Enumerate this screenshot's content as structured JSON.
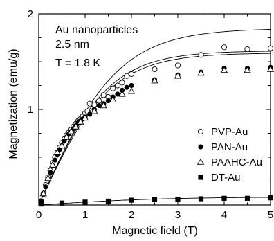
{
  "chart_data": {
    "type": "scatter",
    "xlabel": "Magnetic field (T)",
    "ylabel": "Magnetization (emu/g)",
    "xlim": [
      0,
      5
    ],
    "ylim": [
      0,
      2
    ],
    "xticks": [
      "0",
      "1",
      "2",
      "3",
      "4",
      "5"
    ],
    "yticks": [
      "1",
      "2"
    ],
    "grid": false,
    "legend_position": "center-right",
    "annotations": [
      "Au nanoparticles",
      "2.5 nm",
      "T = 1.8 K"
    ],
    "series": [
      {
        "name": "PVP-Au",
        "marker": "open-circle",
        "x": [
          0.05,
          0.1,
          0.15,
          0.2,
          0.25,
          0.3,
          0.35,
          0.4,
          0.45,
          0.5,
          0.55,
          0.6,
          0.65,
          0.7,
          0.75,
          0.8,
          0.85,
          0.9,
          0.95,
          1.0,
          1.05,
          1.1,
          1.2,
          1.3,
          1.4,
          1.5,
          1.6,
          1.7,
          1.8,
          1.9,
          2.0,
          2.5,
          3.0,
          3.5,
          4.0,
          4.5,
          5.0
        ],
        "y": [
          0.04,
          0.12,
          0.21,
          0.29,
          0.36,
          0.44,
          0.5,
          0.55,
          0.6,
          0.65,
          0.69,
          0.73,
          0.76,
          0.79,
          0.82,
          0.85,
          0.88,
          0.9,
          0.93,
          0.96,
          0.98,
          1.06,
          1.05,
          1.09,
          1.15,
          1.13,
          1.22,
          1.25,
          1.28,
          1.35,
          1.37,
          1.42,
          1.46,
          1.57,
          1.65,
          1.63,
          1.64
        ]
      },
      {
        "name": "PAN-Au",
        "marker": "filled-circle",
        "x": [
          0.05,
          0.1,
          0.15,
          0.2,
          0.25,
          0.3,
          0.35,
          0.4,
          0.45,
          0.5,
          0.55,
          0.6,
          0.65,
          0.7,
          0.75,
          0.8,
          0.85,
          0.9,
          0.95,
          1.0,
          1.1,
          1.2,
          1.3,
          1.4,
          1.5,
          1.6,
          1.7,
          1.8,
          1.9,
          2.0,
          2.5,
          3.0,
          3.5,
          4.0,
          4.5,
          5.0
        ],
        "y": [
          0.04,
          0.11,
          0.19,
          0.27,
          0.34,
          0.41,
          0.47,
          0.53,
          0.58,
          0.62,
          0.67,
          0.71,
          0.74,
          0.77,
          0.8,
          0.83,
          0.86,
          0.88,
          0.9,
          0.92,
          0.95,
          1.0,
          1.04,
          1.06,
          1.09,
          1.13,
          1.16,
          1.2,
          1.23,
          1.25,
          1.31,
          1.36,
          1.39,
          1.43,
          1.43,
          1.44
        ]
      },
      {
        "name": "PAAHC-Au",
        "marker": "open-triangle",
        "x": [
          0.1,
          0.2,
          0.3,
          0.4,
          0.5,
          0.6,
          0.7,
          0.8,
          0.9,
          1.0,
          1.2,
          1.4,
          1.6,
          1.8,
          2.0,
          2.5,
          3.0,
          3.5,
          4.0,
          4.5,
          5.0
        ],
        "y": [
          0.12,
          0.28,
          0.42,
          0.55,
          0.62,
          0.71,
          0.77,
          0.82,
          0.87,
          0.91,
          0.98,
          1.04,
          1.1,
          1.16,
          1.19,
          1.3,
          1.35,
          1.38,
          1.41,
          1.41,
          1.42
        ]
      },
      {
        "name": "DT-Au",
        "marker": "filled-square",
        "x": [
          0.05,
          0.5,
          1.0,
          1.5,
          2.0,
          2.5,
          3.0,
          3.5,
          4.0,
          4.5,
          5.0
        ],
        "y": [
          0.01,
          0.02,
          0.03,
          0.04,
          0.05,
          0.055,
          0.06,
          0.065,
          0.07,
          0.07,
          0.075
        ]
      }
    ]
  }
}
